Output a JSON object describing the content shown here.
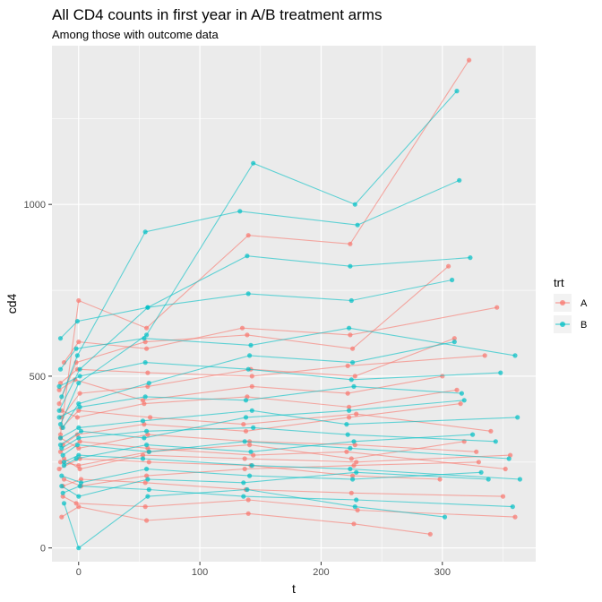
{
  "chart_data": {
    "type": "line",
    "title": "All CD4 counts in first year in A/B treatment arms",
    "subtitle": "Among those with outcome data",
    "xlabel": "t",
    "ylabel": "cd4",
    "xlim": [
      -22,
      377
    ],
    "ylim": [
      -40,
      1462
    ],
    "x_ticks": [
      0,
      100,
      200,
      300
    ],
    "x_tick_labels": [
      "0",
      "100",
      "200",
      "300"
    ],
    "y_ticks": [
      0,
      500,
      1000
    ],
    "y_tick_labels": [
      "0",
      "500",
      "1000"
    ],
    "grid": true,
    "legend_position": "right",
    "legend_title": "trt",
    "series": [
      {
        "name": "A",
        "color": "#F8766D",
        "subjects": [
          {
            "x": [
              -15,
              0,
              56,
              140,
              224,
              322
            ],
            "y": [
              330,
              720,
              640,
              910,
              885,
              1420
            ]
          },
          {
            "x": [
              -16,
              -2,
              55,
              139,
              226,
              305
            ],
            "y": [
              420,
              540,
              600,
              620,
              580,
              820
            ]
          },
          {
            "x": [
              -14,
              1,
              57,
              142,
              228,
              310
            ],
            "y": [
              380,
              450,
              470,
              520,
              500,
              610
            ]
          },
          {
            "x": [
              -13,
              -1,
              54,
              138,
              223,
              315
            ],
            "y": [
              300,
              330,
              360,
              340,
              380,
              420
            ]
          },
          {
            "x": [
              -15,
              0,
              58,
              141,
              225,
              318
            ],
            "y": [
              250,
              240,
              280,
              300,
              260,
              310
            ]
          },
          {
            "x": [
              -12,
              2,
              56,
              137,
              227,
              330
            ],
            "y": [
              200,
              180,
              210,
              230,
              240,
              250
            ]
          },
          {
            "x": [
              -16,
              -3,
              53,
              143,
              222,
              300
            ],
            "y": [
              460,
              490,
              430,
              470,
              450,
              500
            ]
          },
          {
            "x": [
              -14,
              0,
              59,
              136,
              229,
              340
            ],
            "y": [
              350,
              400,
              380,
              360,
              390,
              340
            ]
          },
          {
            "x": [
              -15,
              1,
              57,
              144,
              221,
              352
            ],
            "y": [
              280,
              310,
              290,
              270,
              280,
              230
            ]
          },
          {
            "x": [
              -13,
              -2,
              55,
              140,
              230,
              360
            ],
            "y": [
              150,
              130,
              120,
              140,
              110,
              90
            ]
          },
          {
            "x": [
              -12,
              0,
              56,
              135,
              224,
              345
            ],
            "y": [
              540,
              600,
              580,
              640,
              620,
              700
            ]
          },
          {
            "x": [
              -16,
              1,
              58,
              142,
              226,
              298
            ],
            "y": [
              230,
              260,
              250,
              240,
              210,
              200
            ]
          },
          {
            "x": [
              -14,
              -1,
              54,
              139,
              223,
              312
            ],
            "y": [
              400,
              380,
              420,
              440,
              410,
              460
            ]
          },
          {
            "x": [
              -15,
              0,
              57,
              141,
              228,
              328
            ],
            "y": [
              320,
              290,
              330,
              310,
              300,
              280
            ]
          },
          {
            "x": [
              -13,
              2,
              55,
              138,
              225,
              350
            ],
            "y": [
              180,
              200,
              190,
              170,
              160,
              150
            ]
          },
          {
            "x": [
              -14,
              0,
              56,
              140,
              227,
              290
            ],
            "y": [
              90,
              120,
              80,
              100,
              70,
              40
            ]
          },
          {
            "x": [
              -15,
              -1,
              57,
              143,
              222,
              335
            ],
            "y": [
              480,
              520,
              510,
              500,
              530,
              560
            ]
          },
          {
            "x": [
              -12,
              1,
              53,
              137,
              229,
              356
            ],
            "y": [
              260,
              230,
              270,
              260,
              250,
              270
            ]
          }
        ]
      },
      {
        "name": "B",
        "color": "#00BFC4",
        "subjects": [
          {
            "x": [
              -15,
              0,
              56,
              144,
              228,
              312
            ],
            "y": [
              360,
              480,
              620,
              1120,
              1000,
              1330
            ]
          },
          {
            "x": [
              -14,
              -1,
              55,
              133,
              230,
              314
            ],
            "y": [
              440,
              560,
              920,
              980,
              940,
              1070
            ]
          },
          {
            "x": [
              -16,
              1,
              57,
              139,
              224,
              323
            ],
            "y": [
              400,
              520,
              700,
              850,
              820,
              845
            ]
          },
          {
            "x": [
              -13,
              0,
              58,
              141,
              226,
              310
            ],
            "y": [
              350,
              420,
              480,
              560,
              540,
              600
            ]
          },
          {
            "x": [
              -15,
              2,
              54,
              138,
              223,
              318
            ],
            "y": [
              300,
              340,
              320,
              380,
              400,
              430
            ]
          },
          {
            "x": [
              -12,
              -2,
              56,
              142,
              227,
              325
            ],
            "y": [
              240,
              260,
              300,
              280,
              310,
              330
            ]
          },
          {
            "x": [
              -14,
              0,
              57,
              136,
              229,
              338
            ],
            "y": [
              180,
              150,
              200,
              190,
              220,
              200
            ]
          },
          {
            "x": [
              -16,
              1,
              55,
              140,
              225,
              348
            ],
            "y": [
              470,
              500,
              540,
              520,
              490,
              510
            ]
          },
          {
            "x": [
              -15,
              0,
              53,
              143,
              221,
              362
            ],
            "y": [
              320,
              350,
              370,
              400,
              360,
              380
            ]
          },
          {
            "x": [
              -13,
              -1,
              58,
              137,
              224,
              355
            ],
            "y": [
              270,
              300,
              280,
              310,
              290,
              260
            ]
          },
          {
            "x": [
              -14,
              2,
              56,
              141,
              226,
              332
            ],
            "y": [
              210,
              190,
              230,
              210,
              200,
              220
            ]
          },
          {
            "x": [
              -12,
              0,
              57,
              139,
              228,
              302
            ],
            "y": [
              130,
              0,
              150,
              170,
              120,
              90
            ]
          },
          {
            "x": [
              -15,
              -2,
              54,
              142,
              223,
              360
            ],
            "y": [
              520,
              580,
              610,
              590,
              640,
              560
            ]
          },
          {
            "x": [
              -16,
              1,
              55,
              138,
              227,
              316
            ],
            "y": [
              380,
              410,
              440,
              430,
              470,
              450
            ]
          },
          {
            "x": [
              -14,
              0,
              56,
              144,
              222,
              344
            ],
            "y": [
              290,
              320,
              340,
              350,
              330,
              310
            ]
          },
          {
            "x": [
              -13,
              1,
              58,
              136,
              229,
              358
            ],
            "y": [
              160,
              180,
              170,
              150,
              140,
              120
            ]
          },
          {
            "x": [
              -15,
              -1,
              57,
              140,
              225,
              308
            ],
            "y": [
              610,
              660,
              700,
              740,
              720,
              780
            ]
          },
          {
            "x": [
              -12,
              0,
              53,
              143,
              224,
              364
            ],
            "y": [
              250,
              270,
              260,
              240,
              230,
              200
            ]
          }
        ]
      }
    ]
  }
}
